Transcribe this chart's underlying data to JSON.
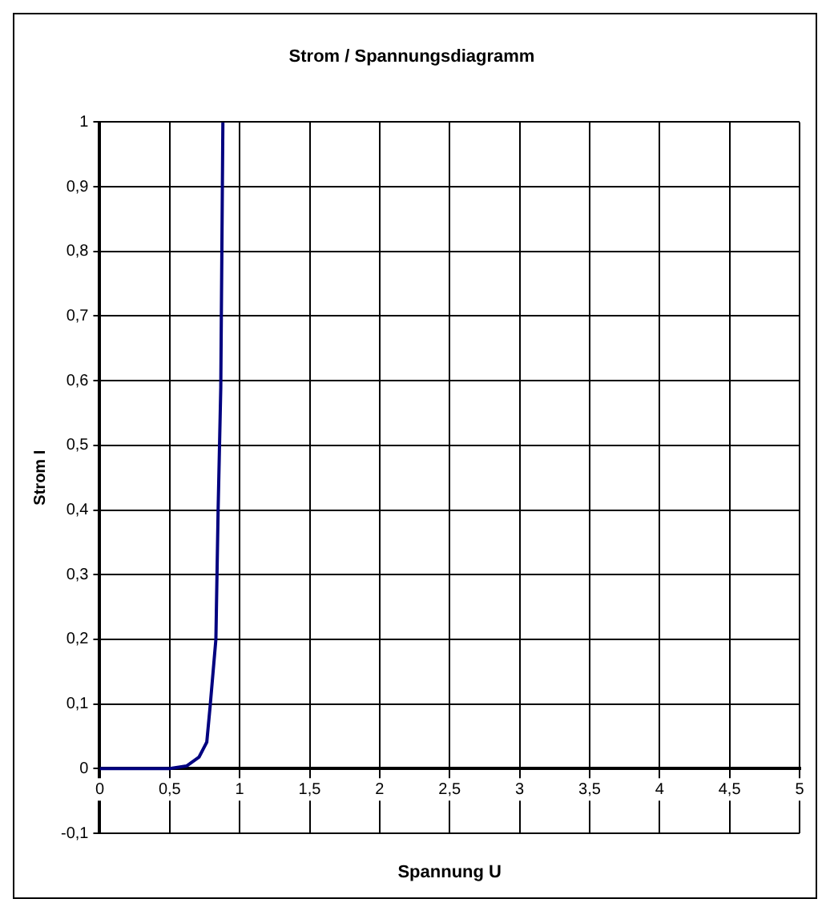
{
  "chart_data": {
    "type": "line",
    "title": "Strom / Spannungsdiagramm",
    "xlabel": "Spannung U",
    "ylabel": "Strom I",
    "series": [
      {
        "color": "#000080",
        "x": [
          0,
          0.5,
          0.62,
          0.71,
          0.765,
          0.79,
          0.83,
          0.846,
          0.865,
          0.88
        ],
        "values": [
          0,
          0,
          0.004,
          0.018,
          0.041,
          0.099,
          0.2,
          0.4,
          0.59,
          1
        ]
      }
    ],
    "xlim": [
      0,
      5
    ],
    "xticks": [
      0,
      {
        "value": 0.5,
        "label": "0,5"
      },
      1,
      {
        "value": 1.5,
        "label": "1,5"
      },
      2,
      {
        "value": 2.5,
        "label": "2,5"
      },
      3,
      {
        "value": 3.5,
        "label": "3,5"
      },
      4,
      {
        "value": 4.5,
        "label": "4,5"
      },
      5
    ],
    "ylim": [
      -0.1,
      1
    ],
    "yticks": [
      {
        "value": -0.1,
        "label": "-0,1"
      },
      0,
      {
        "value": 0.1,
        "label": "0,1"
      },
      {
        "value": 0.2,
        "label": "0,2"
      },
      {
        "value": 0.3,
        "label": "0,3"
      },
      {
        "value": 0.4,
        "label": "0,4"
      },
      {
        "value": 0.5,
        "label": "0,5"
      },
      {
        "value": 0.6,
        "label": "0,6"
      },
      {
        "value": 0.7,
        "label": "0,7"
      },
      {
        "value": 0.8,
        "label": "0,8"
      },
      {
        "value": 0.9,
        "label": "0,9"
      },
      1
    ],
    "grid": true,
    "legend": false,
    "marker": "none",
    "line_style": "solid"
  }
}
